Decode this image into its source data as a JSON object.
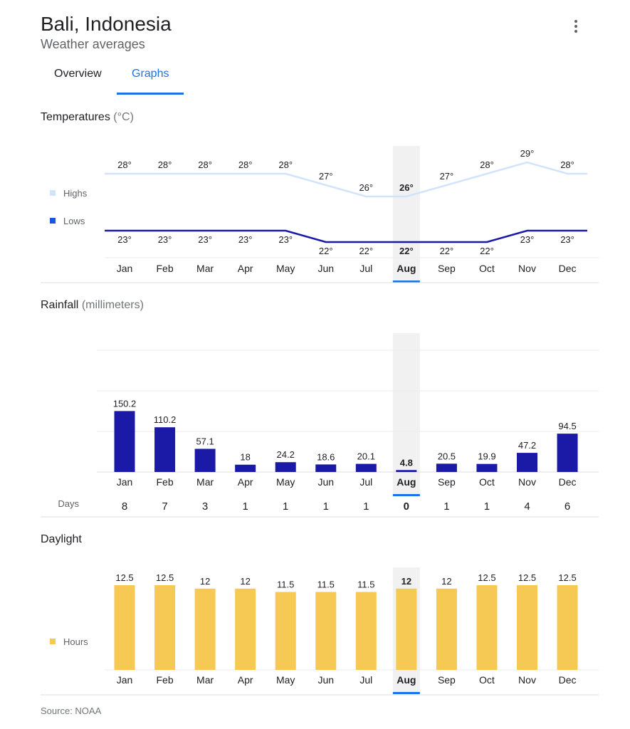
{
  "header": {
    "title": "Bali, Indonesia",
    "subtitle": "Weather averages",
    "menu_icon": "more-vert-icon"
  },
  "tabs": [
    {
      "label": "Overview",
      "selected": false
    },
    {
      "label": "Graphs",
      "selected": true
    }
  ],
  "selected_month": "Aug",
  "colors": {
    "highs": "#d2e3fc",
    "lows": "#1a1aa6",
    "lows_legend": "#1a56db",
    "rain": "#1a1aa6",
    "daylight": "#f6c955",
    "accent": "#1a73e8",
    "highlight": "#f1f1f1"
  },
  "chart_data": [
    {
      "type": "line",
      "title": "Temperatures",
      "unit": "(°C)",
      "categories": [
        "Jan",
        "Feb",
        "Mar",
        "Apr",
        "May",
        "Jun",
        "Jul",
        "Aug",
        "Sep",
        "Oct",
        "Nov",
        "Dec"
      ],
      "series": [
        {
          "name": "Highs",
          "values": [
            28,
            28,
            28,
            28,
            28,
            27,
            26,
            26,
            27,
            28,
            29,
            28
          ]
        },
        {
          "name": "Lows",
          "values": [
            23,
            23,
            23,
            23,
            23,
            22,
            22,
            22,
            22,
            22,
            23,
            23
          ]
        }
      ],
      "value_suffix": "°",
      "legend": "left"
    },
    {
      "type": "bar",
      "title": "Rainfall",
      "unit": "(millimeters)",
      "categories": [
        "Jan",
        "Feb",
        "Mar",
        "Apr",
        "May",
        "Jun",
        "Jul",
        "Aug",
        "Sep",
        "Oct",
        "Nov",
        "Dec"
      ],
      "values": [
        150.2,
        110.2,
        57.1,
        18,
        24.2,
        18.6,
        20.1,
        4.8,
        20.5,
        19.9,
        47.2,
        94.5
      ],
      "ylim": [
        0,
        300
      ],
      "grid": true,
      "days_label": "Days",
      "days": [
        8,
        7,
        3,
        1,
        1,
        1,
        1,
        0,
        1,
        1,
        4,
        6
      ]
    },
    {
      "type": "bar",
      "title": "Daylight",
      "unit": "",
      "categories": [
        "Jan",
        "Feb",
        "Mar",
        "Apr",
        "May",
        "Jun",
        "Jul",
        "Aug",
        "Sep",
        "Oct",
        "Nov",
        "Dec"
      ],
      "values": [
        12.5,
        12.5,
        12,
        12,
        11.5,
        11.5,
        11.5,
        12,
        12,
        12.5,
        12.5,
        12.5
      ],
      "series_name": "Hours",
      "legend": "left"
    }
  ],
  "source": "Source: NOAA"
}
